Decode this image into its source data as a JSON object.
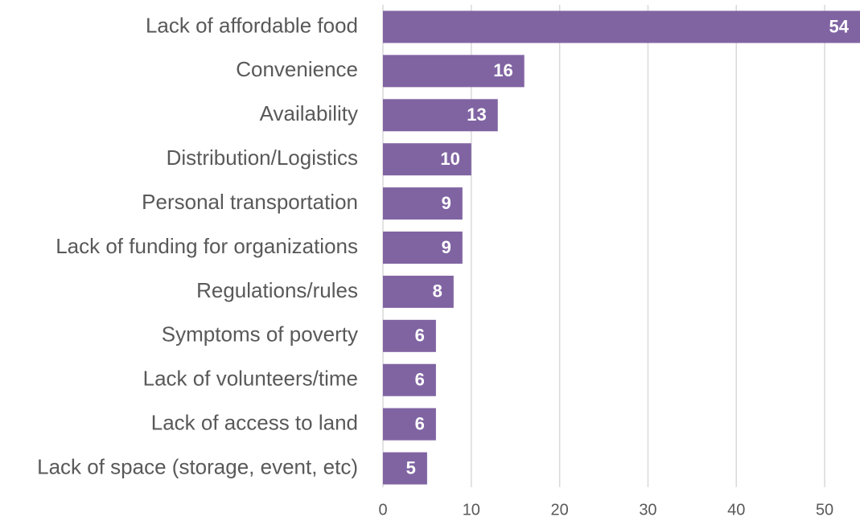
{
  "chart_data": {
    "type": "bar",
    "orientation": "horizontal",
    "categories": [
      "Lack of affordable food",
      "Convenience",
      "Availability",
      "Distribution/Logistics",
      "Personal transportation",
      "Lack of funding for organizations",
      "Regulations/rules",
      "Symptoms of poverty",
      "Lack of volunteers/time",
      "Lack of access to land",
      "Lack of space (storage, event, etc)"
    ],
    "values": [
      54,
      16,
      13,
      10,
      9,
      9,
      8,
      6,
      6,
      6,
      5
    ],
    "color": "#8064a2",
    "xlim": [
      0,
      54
    ],
    "xticks": [
      0,
      10,
      20,
      30,
      40,
      50
    ],
    "grid": true
  }
}
